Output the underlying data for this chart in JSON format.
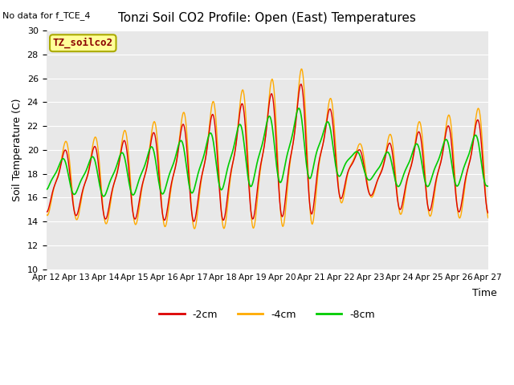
{
  "title": "Tonzi Soil CO2 Profile: Open (East) Temperatures",
  "subtitle": "No data for f_TCE_4",
  "ylabel": "Soil Temperature (C)",
  "xlabel": "Time",
  "legend_label": "TZ_soilco2",
  "ylim": [
    10,
    30
  ],
  "yticks": [
    10,
    12,
    14,
    16,
    18,
    20,
    22,
    24,
    26,
    28,
    30
  ],
  "xtick_labels": [
    "Apr 12",
    "Apr 13",
    "Apr 14",
    "Apr 15",
    "Apr 16",
    "Apr 17",
    "Apr 18",
    "Apr 19",
    "Apr 20",
    "Apr 21",
    "Apr 22",
    "Apr 23",
    "Apr 24",
    "Apr 25",
    "Apr 26",
    "Apr 27"
  ],
  "color_2cm": "#dd0000",
  "color_4cm": "#ffaa00",
  "color_8cm": "#00cc00",
  "bg_color": "#e8e8e8",
  "legend_box_color": "#ffff99",
  "legend_box_edge": "#aaaa00",
  "figwidth": 6.4,
  "figheight": 4.8,
  "dpi": 100
}
